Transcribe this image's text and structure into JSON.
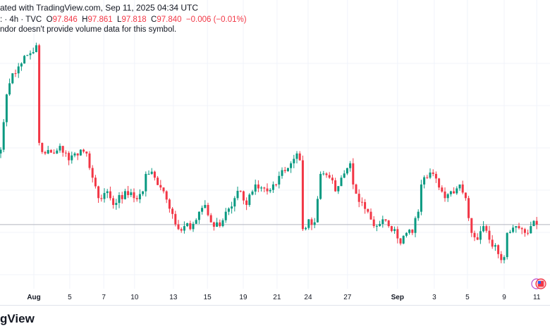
{
  "header": {
    "published": "ated with TradingView.com, Sep 11, 2025 04:34 UTC"
  },
  "legend": {
    "symbol": ": · 4h · TVC",
    "o_label": "O",
    "o": "97.846",
    "h_label": "H",
    "h": "97.861",
    "l_label": "L",
    "l": "97.818",
    "c_label": "C",
    "c": "97.840",
    "change": "−0.006 (−0.01%)"
  },
  "volume_note": "ndor doesn't provide volume data for this symbol.",
  "logo": "gView",
  "colors": {
    "up": "#089981",
    "down": "#f23645",
    "grid": "#f0f3fa",
    "last_line": "#b2b5be"
  },
  "chart_data": {
    "type": "candlestick",
    "interval": "4h",
    "last_price": 97.84,
    "y_range": [
      97.29,
      100.25
    ],
    "waypoints": [
      [
        0,
        98.83
      ],
      [
        2,
        99.56
      ],
      [
        4,
        99.84
      ],
      [
        6,
        99.93
      ],
      [
        8,
        100.07
      ],
      [
        11,
        100.12
      ],
      [
        12,
        100.21
      ],
      [
        13,
        98.92
      ],
      [
        15,
        98.78
      ],
      [
        18,
        98.78
      ],
      [
        20,
        98.88
      ],
      [
        23,
        98.69
      ],
      [
        25,
        98.78
      ],
      [
        27,
        98.83
      ],
      [
        29,
        98.78
      ],
      [
        31,
        98.46
      ],
      [
        33,
        98.19
      ],
      [
        36,
        98.28
      ],
      [
        38,
        98.1
      ],
      [
        40,
        98.23
      ],
      [
        43,
        98.23
      ],
      [
        45,
        98.19
      ],
      [
        48,
        98.28
      ],
      [
        49,
        98.51
      ],
      [
        50,
        98.51
      ],
      [
        52,
        98.46
      ],
      [
        55,
        98.28
      ],
      [
        57,
        98.05
      ],
      [
        60,
        97.78
      ],
      [
        62,
        97.82
      ],
      [
        64,
        97.78
      ],
      [
        67,
        98.01
      ],
      [
        69,
        98.1
      ],
      [
        71,
        97.87
      ],
      [
        74,
        97.82
      ],
      [
        76,
        98.01
      ],
      [
        79,
        98.19
      ],
      [
        81,
        98.28
      ],
      [
        83,
        98.1
      ],
      [
        86,
        98.37
      ],
      [
        88,
        98.33
      ],
      [
        90,
        98.28
      ],
      [
        93,
        98.37
      ],
      [
        95,
        98.56
      ],
      [
        98,
        98.65
      ],
      [
        100,
        98.78
      ],
      [
        101,
        98.69
      ],
      [
        102,
        97.78
      ],
      [
        104,
        97.91
      ],
      [
        106,
        97.87
      ],
      [
        108,
        98.51
      ],
      [
        111,
        98.46
      ],
      [
        113,
        98.28
      ],
      [
        115,
        98.46
      ],
      [
        118,
        98.65
      ],
      [
        119,
        98.37
      ],
      [
        121,
        98.14
      ],
      [
        124,
        98.01
      ],
      [
        126,
        97.82
      ],
      [
        129,
        97.91
      ],
      [
        131,
        97.82
      ],
      [
        133,
        97.78
      ],
      [
        135,
        97.59
      ],
      [
        137,
        97.73
      ],
      [
        139,
        97.73
      ],
      [
        141,
        98.01
      ],
      [
        142,
        98.37
      ],
      [
        144,
        98.46
      ],
      [
        146,
        98.51
      ],
      [
        148,
        98.33
      ],
      [
        150,
        98.19
      ],
      [
        152,
        98.28
      ],
      [
        155,
        98.37
      ],
      [
        157,
        98.19
      ],
      [
        159,
        97.73
      ],
      [
        161,
        97.64
      ],
      [
        163,
        97.82
      ],
      [
        165,
        97.64
      ],
      [
        168,
        97.45
      ],
      [
        170,
        97.41
      ],
      [
        171,
        97.73
      ],
      [
        174,
        97.82
      ],
      [
        176,
        97.78
      ],
      [
        177,
        97.73
      ],
      [
        179,
        97.82
      ],
      [
        181,
        97.84
      ]
    ],
    "x_ticks": [
      {
        "label": "Aug",
        "i": 11.2,
        "bold": true
      },
      {
        "label": "5",
        "i": 23.3
      },
      {
        "label": "7",
        "i": 34.8
      },
      {
        "label": "10",
        "i": 45.2
      },
      {
        "label": "13",
        "i": 58.3
      },
      {
        "label": "15",
        "i": 69.8
      },
      {
        "label": "19",
        "i": 81.9
      },
      {
        "label": "21",
        "i": 93.3
      },
      {
        "label": "24",
        "i": 103.8
      },
      {
        "label": "27",
        "i": 117.1
      },
      {
        "label": "Sep",
        "i": 134,
        "bold": true
      },
      {
        "label": "3",
        "i": 146.4
      },
      {
        "label": "5",
        "i": 157.6
      },
      {
        "label": "9",
        "i": 170
      },
      {
        "label": "11",
        "i": 181
      }
    ]
  }
}
